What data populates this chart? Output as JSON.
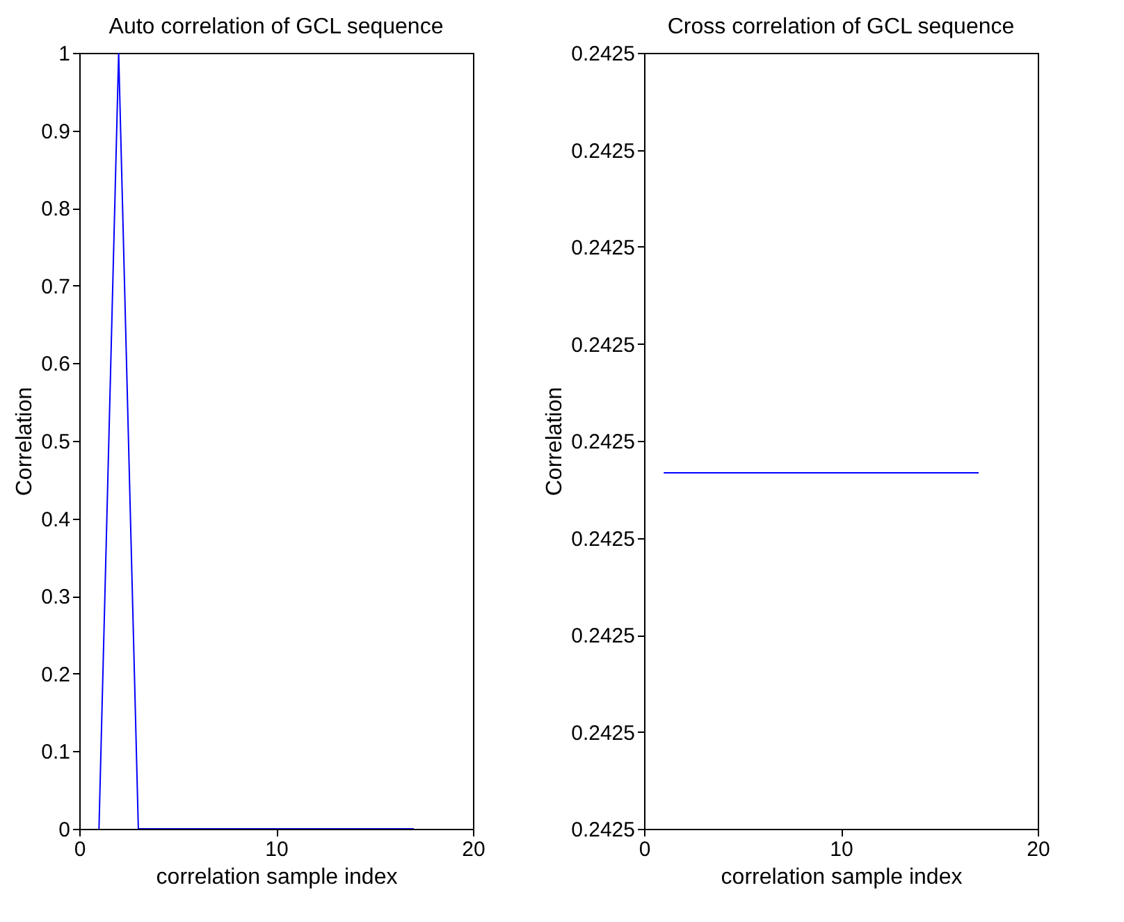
{
  "chart_data": [
    {
      "type": "line",
      "title": "Auto correlation of GCL sequence",
      "xlabel": "correlation sample index",
      "ylabel": "Correlation",
      "x": [
        1,
        2,
        3,
        4,
        5,
        6,
        7,
        8,
        9,
        10,
        11,
        12,
        13,
        14,
        15,
        16,
        17
      ],
      "series": [
        {
          "color": "#0000ff",
          "values": [
            0,
            1,
            0,
            0,
            0,
            0,
            0,
            0,
            0,
            0,
            0,
            0,
            0,
            0,
            0,
            0,
            0
          ]
        }
      ],
      "xlim": [
        0,
        20
      ],
      "xticks": [
        0,
        10,
        20
      ],
      "ylim": [
        0,
        1
      ],
      "yticks": [
        0,
        0.1,
        0.2,
        0.3,
        0.4,
        0.5,
        0.6,
        0.7,
        0.8,
        0.9,
        1
      ],
      "grid": false
    },
    {
      "type": "line",
      "title": "Cross correlation of GCL sequence",
      "xlabel": "correlation sample index",
      "ylabel": "Correlation",
      "x": [
        1,
        17
      ],
      "series": [
        {
          "color": "#0000ff",
          "values": [
            0.2424867,
            0.2424867
          ]
        }
      ],
      "xlim": [
        0,
        20
      ],
      "xticks": [
        0,
        10,
        20
      ],
      "ylim": [
        0.24245,
        0.24253
      ],
      "yticks": [
        {
          "value": 0.24245,
          "label": "0.2425"
        },
        {
          "value": 0.24246,
          "label": "0.2425"
        },
        {
          "value": 0.24247,
          "label": "0.2425"
        },
        {
          "value": 0.24248,
          "label": "0.2425"
        },
        {
          "value": 0.24249,
          "label": "0.2425"
        },
        {
          "value": 0.2425,
          "label": "0.2425"
        },
        {
          "value": 0.24251,
          "label": "0.2425"
        },
        {
          "value": 0.24252,
          "label": "0.2425"
        },
        {
          "value": 0.24253,
          "label": "0.2425"
        }
      ],
      "grid": false
    }
  ]
}
